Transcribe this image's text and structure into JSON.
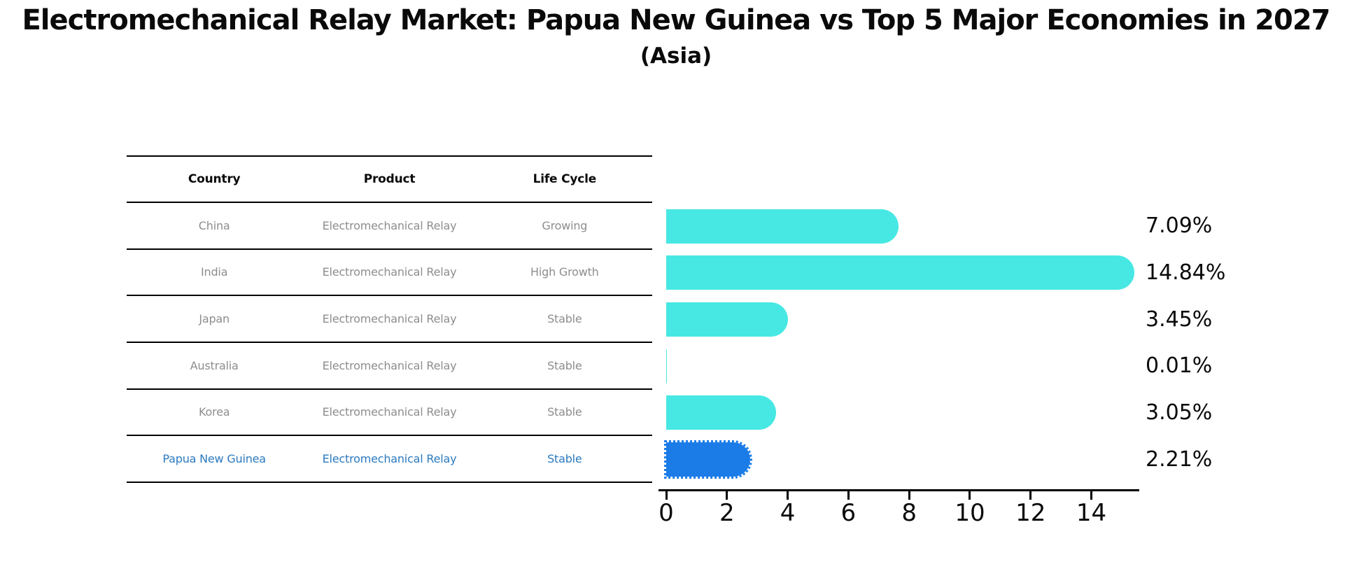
{
  "page": {
    "title": "Electromechanical Relay Market: Papua New Guinea vs Top 5 Major Economies in 2027",
    "subtitle": "(Asia)"
  },
  "table": {
    "headers": [
      "Country",
      "Product",
      "Life Cycle"
    ],
    "rows": [
      {
        "country": "China",
        "product": "Electromechanical Relay",
        "life_cycle": "Growing",
        "highlighted": false
      },
      {
        "country": "India",
        "product": "Electromechanical Relay",
        "life_cycle": "High Growth",
        "highlighted": false
      },
      {
        "country": "Japan",
        "product": "Electromechanical Relay",
        "life_cycle": "Stable",
        "highlighted": false
      },
      {
        "country": "Australia",
        "product": "Electromechanical Relay",
        "life_cycle": "Stable",
        "highlighted": false
      },
      {
        "country": "Korea",
        "product": "Electromechanical Relay",
        "life_cycle": "Stable",
        "highlighted": false
      },
      {
        "country": "Papua New Guinea",
        "product": "Electromechanical Relay",
        "life_cycle": "Stable",
        "highlighted": true
      }
    ]
  },
  "chart_data": {
    "type": "bar",
    "orientation": "horizontal",
    "title": "Electromechanical Relay Market: Papua New Guinea vs Top 5 Major Economies in 2027 (Asia)",
    "categories": [
      "China",
      "India",
      "Japan",
      "Australia",
      "Korea",
      "Papua New Guinea"
    ],
    "values": [
      7.09,
      14.84,
      3.45,
      0.01,
      3.05,
      2.21
    ],
    "value_labels": [
      "7.09%",
      "14.84%",
      "3.45%",
      "0.01%",
      "3.05%",
      "2.21%"
    ],
    "highlight_category": "Papua New Guinea",
    "highlight_index": 5,
    "x_ticks": [
      0,
      2,
      4,
      6,
      8,
      10,
      12,
      14
    ],
    "xlim": [
      0,
      15.6
    ],
    "grid": false,
    "legend": false,
    "bar_color": "#47e8e3",
    "highlight_bar_color": "#1b7ce8"
  },
  "colors": {
    "background": "#ffffff",
    "title_text": "#0a0a0a",
    "table_header_text": "#0a0a0a",
    "table_row_text": "#8d8d8d",
    "highlight_row_text": "#2b7abf",
    "table_border": "#000000",
    "axis": "#000000",
    "bar_default": "#47e8e3",
    "bar_highlight": "#1b7ce8"
  }
}
